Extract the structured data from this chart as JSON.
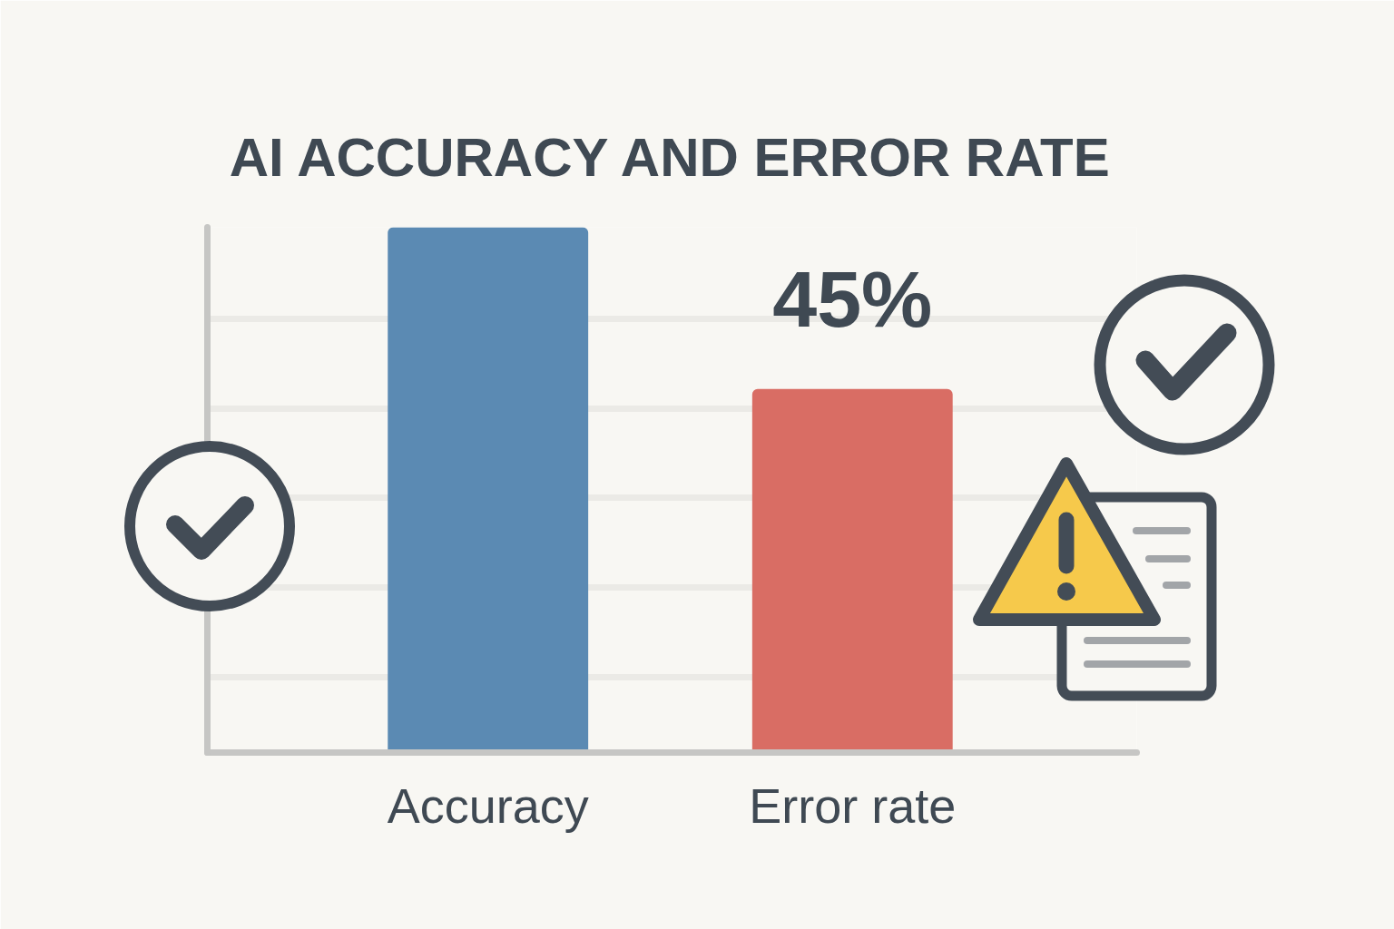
{
  "chart_data": {
    "type": "bar",
    "title": "AI ACCURACY AND ERROR RATE",
    "categories": [
      "Accuracy",
      "Error rate"
    ],
    "values": [
      65,
      45
    ],
    "colors": [
      "#5b8ab3",
      "#d96d64"
    ],
    "value_labels": [
      null,
      "45%"
    ],
    "ylim": [
      0,
      65
    ],
    "yticks": [
      {
        "value": 9.3,
        "label": null
      },
      {
        "value": 20.4,
        "label": null
      },
      {
        "value": 31.5,
        "label": null
      },
      {
        "value": 42.6,
        "label": null
      },
      {
        "value": 53.7,
        "label": null
      }
    ],
    "grid": "y",
    "tick_labels": "x"
  }
}
